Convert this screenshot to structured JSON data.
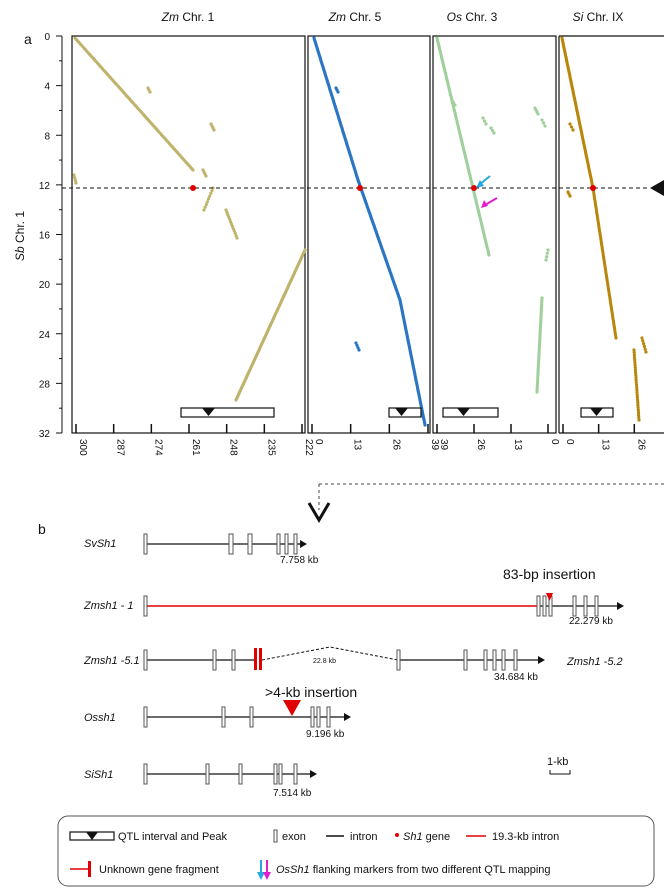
{
  "panel_a": {
    "letter": "a",
    "y_axis": {
      "species": "Sb",
      "label_rest": " Chr. 1",
      "ticks": [
        "0",
        "4",
        "8",
        "12",
        "16",
        "20",
        "24",
        "28",
        "32"
      ],
      "ylim": [
        0,
        32
      ]
    },
    "qtl_peak_y": 12.5,
    "panels": [
      {
        "species": "Zm",
        "title_rest": " Chr. 1",
        "color": "#bfb36c",
        "ticks": [
          "300",
          "287",
          "274",
          "261",
          "248",
          "235",
          "222"
        ],
        "xlim": [
          300,
          222
        ]
      },
      {
        "species": "Zm",
        "title_rest": " Chr. 5",
        "color": "#2b76c4",
        "ticks": [
          "0",
          "13",
          "26",
          "39"
        ],
        "xlim": [
          0,
          39
        ]
      },
      {
        "species": "Os",
        "title_rest": " Chr. 3",
        "color": "#9fcf9a",
        "ticks": [
          "39",
          "26",
          "13",
          "0"
        ],
        "xlim": [
          39,
          0
        ]
      },
      {
        "species": "Si",
        "title_rest": " Chr. IX",
        "color": "#b8860b",
        "ticks": [
          "0",
          "13",
          "26"
        ],
        "xlim": [
          0,
          31
        ]
      }
    ]
  },
  "panel_b": {
    "letter": "b",
    "genes": [
      {
        "name": "SvSh1",
        "size": "7.758 kb"
      },
      {
        "name": "Zmsh1 - 1",
        "size": "22.279 kb",
        "annotation": "83-bp insertion"
      },
      {
        "name": "Zmsh1 -5.1",
        "size": "34.684 kb",
        "gap": "22.8 kb",
        "partner": "Zmsh1 -5.2"
      },
      {
        "name": "Ossh1",
        "size": "9.196 kb",
        "annotation": ">4-kb insertion"
      },
      {
        "name": "SiSh1",
        "size": "7.514 kb"
      }
    ],
    "scale_bar": "1-kb"
  },
  "legend": {
    "qtl": "QTL interval and Peak",
    "exon": "exon",
    "intron": "intron",
    "sh1_gene": "Sh1",
    "sh1_gene_suffix": " gene",
    "intron_long": "19.3-kb intron",
    "unknown": "Unknown gene fragment",
    "markers_gene": "OsSh1",
    "markers_rest": " flanking markers from two different  QTL mapping"
  },
  "colors": {
    "red": "#e00000",
    "cyan": "#29a8e0",
    "magenta": "#e020d0"
  }
}
